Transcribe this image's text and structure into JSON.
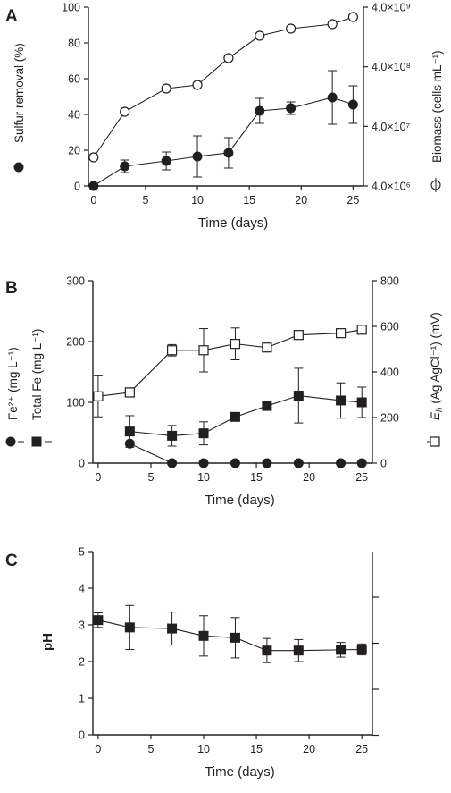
{
  "figure": {
    "panels": [
      {
        "letter": "A",
        "xlabel": "Time (days)"
      },
      {
        "letter": "B",
        "xlabel": "Time (days)"
      },
      {
        "letter": "C",
        "xlabel": "Time (days)"
      }
    ]
  },
  "colors": {
    "ink": "#231f20"
  },
  "chart_data": [
    {
      "panel": "A",
      "type": "line",
      "x_ticks": [
        "0",
        "5",
        "10",
        "15",
        "20",
        "25"
      ],
      "xlim": [
        -0.5,
        26
      ],
      "xlabel": "Time (days)",
      "left_axis": {
        "label": "Sulfur removal (%)",
        "ylim": [
          0,
          100
        ],
        "ticks": [
          "0",
          "20",
          "40",
          "60",
          "80",
          "100"
        ]
      },
      "right_axis": {
        "label": "Biomass (cells mL⁻¹)",
        "scale": "log",
        "ylim": [
          4000000,
          4000000000
        ],
        "ticks": [
          "4.0×10⁶",
          "4.0×10⁷",
          "4.0×10⁸",
          "4.0×10⁹"
        ]
      },
      "series": [
        {
          "name": "Sulfur removal",
          "axis": "left",
          "marker": "filled-circle",
          "x": [
            0,
            3,
            7,
            10,
            13,
            16,
            19,
            23,
            25
          ],
          "y": [
            0,
            11,
            14,
            16.5,
            18.5,
            42,
            43.5,
            49.5,
            45.5
          ],
          "err": [
            0,
            3.5,
            5,
            11.5,
            8.5,
            7,
            3.5,
            15,
            10.5
          ]
        },
        {
          "name": "Biomass",
          "axis": "right",
          "marker": "open-circle",
          "x": [
            0,
            3,
            7,
            10,
            13,
            16,
            19,
            23,
            25
          ],
          "y": [
            16,
            41.5,
            54.5,
            56.5,
            71.5,
            84,
            88,
            90.5,
            94.5
          ],
          "y_unit": "percent of right-axis height (log scale)"
        }
      ]
    },
    {
      "panel": "B",
      "type": "line",
      "x_ticks": [
        "0",
        "5",
        "10",
        "15",
        "20",
        "25"
      ],
      "xlim": [
        -0.5,
        26
      ],
      "xlabel": "Time (days)",
      "left_axis": {
        "label": "Fe²⁺ (mg L⁻¹)  Total Fe (mg L⁻¹)",
        "ylim": [
          0,
          300
        ],
        "ticks": [
          "0",
          "100",
          "200",
          "300"
        ]
      },
      "right_axis": {
        "label": "Eh (Ag AgCl⁻¹) (mV)",
        "ylim": [
          0,
          800
        ],
        "ticks": [
          "0",
          "200",
          "400",
          "600",
          "800"
        ]
      },
      "series": [
        {
          "name": "Fe2+",
          "axis": "left",
          "marker": "filled-circle",
          "x": [
            3,
            7,
            10,
            13,
            16,
            19,
            23,
            25
          ],
          "y": [
            32,
            0,
            0,
            0,
            0,
            0,
            0,
            0
          ],
          "err": [
            0,
            0,
            0,
            0,
            0,
            0,
            0,
            0
          ]
        },
        {
          "name": "Total Fe",
          "axis": "left",
          "marker": "filled-square",
          "x": [
            3,
            7,
            10,
            13,
            16,
            19,
            23,
            25
          ],
          "y": [
            52,
            45,
            49,
            76,
            94,
            111,
            103,
            100
          ],
          "err": [
            26,
            17,
            19,
            0,
            0,
            45,
            29,
            25
          ]
        },
        {
          "name": "Eh",
          "axis": "right",
          "marker": "open-square",
          "x": [
            0,
            3,
            7,
            10,
            13,
            16,
            19,
            23,
            25
          ],
          "y": [
            293,
            310,
            495,
            495,
            523,
            507,
            562,
            570,
            585
          ],
          "err": [
            90,
            20,
            25,
            95,
            70,
            0,
            0,
            15,
            0
          ]
        }
      ]
    },
    {
      "panel": "C",
      "type": "line",
      "x_ticks": [
        "0",
        "5",
        "10",
        "15",
        "20",
        "25"
      ],
      "xlim": [
        -0.5,
        26
      ],
      "xlabel": "Time (days)",
      "ylabel": "pH",
      "ylim": [
        0,
        5
      ],
      "y_ticks": [
        "0",
        "1",
        "2",
        "3",
        "4",
        "5"
      ],
      "right_axis": {
        "ticks_unlabeled": 4
      },
      "series": [
        {
          "name": "pH",
          "marker": "filled-square",
          "x": [
            0,
            3,
            7,
            10,
            13,
            16,
            19,
            23,
            25
          ],
          "y": [
            3.13,
            2.93,
            2.9,
            2.7,
            2.65,
            2.3,
            2.3,
            2.32,
            2.33
          ],
          "err": [
            0.2,
            0.6,
            0.45,
            0.55,
            0.55,
            0.33,
            0.3,
            0.2,
            0.15
          ]
        }
      ]
    }
  ]
}
